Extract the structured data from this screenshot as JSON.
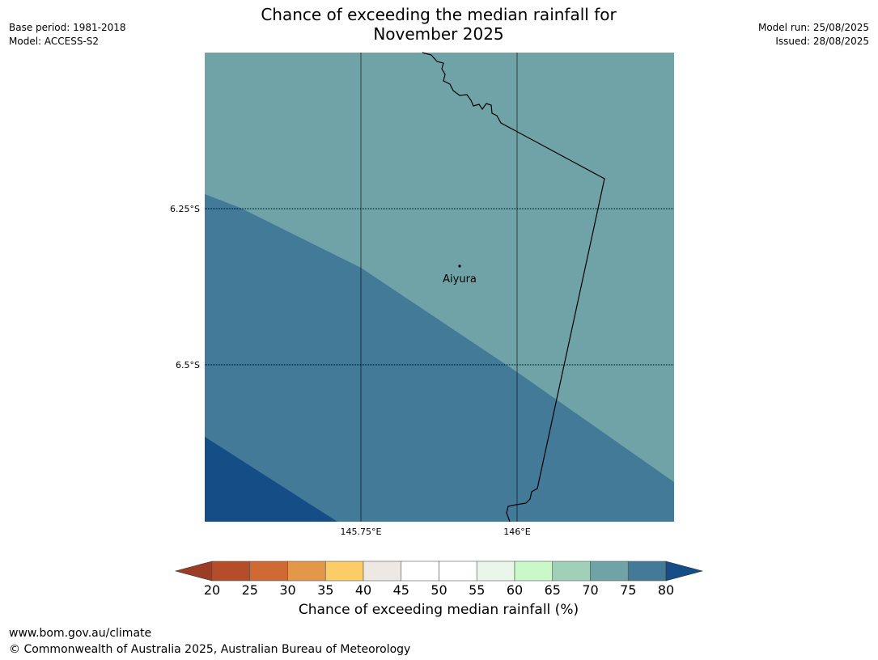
{
  "header": {
    "title_line1": "Chance of exceeding the median rainfall for",
    "title_line2": "November 2025",
    "base_period": "Base period: 1981-2018",
    "model": "Model: ACCESS-S2",
    "model_run": "Model run: 25/08/2025",
    "issued": "Issued: 28/08/2025"
  },
  "map": {
    "place_label": "Aiyura",
    "lat_labels": [
      "6.25°S",
      "6.5°S"
    ],
    "lon_labels": [
      "145.75°E",
      "146°E"
    ],
    "region_colors": {
      "band_70_75": "#6fa3a8",
      "band_75_80": "#427a98",
      "band_above_80": "#154d87",
      "border": "#000000",
      "gridline": "#000000"
    }
  },
  "colorbar": {
    "title": "Chance of exceeding median rainfall (%)",
    "ticks": [
      "20",
      "25",
      "30",
      "35",
      "40",
      "45",
      "50",
      "55",
      "60",
      "65",
      "70",
      "75",
      "80"
    ],
    "under_color": "#9b3d24",
    "over_color": "#154d87",
    "colors": [
      "#b44d28",
      "#d06a35",
      "#e49649",
      "#fdcc66",
      "#ede8e3",
      "#ffffff",
      "#ffffff",
      "#eaf6ea",
      "#c9f9c9",
      "#a0d0b8",
      "#6fa3a8",
      "#427a98"
    ]
  },
  "footer": {
    "url": "www.bom.gov.au/climate",
    "copyright": "© Commonwealth of Australia 2025, Australian Bureau of Meteorology"
  }
}
